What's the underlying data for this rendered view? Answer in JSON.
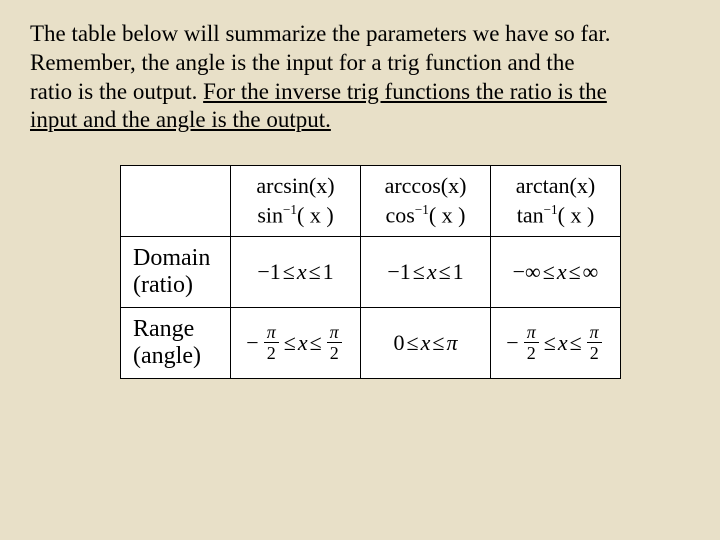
{
  "intro": {
    "line1": "The table below will summarize the parameters we have so far.",
    "line2": "Remember, the angle is the input for a trig function and the",
    "line3_plain": "ratio is the output. ",
    "line3_under": "For the inverse trig functions the ratio is the",
    "line4_under": "input and the angle is the output."
  },
  "table": {
    "headers": {
      "col1_top": "arcsin(x)",
      "col1_bot_fn": "sin",
      "col2_top": "arccos(x)",
      "col2_bot_fn": "cos",
      "col3_top": "arctan(x)",
      "col3_bot_fn": "tan",
      "inv_exp": "−1",
      "arg": "( x )"
    },
    "rows": {
      "domain_label1": "Domain",
      "domain_label2": "(ratio)",
      "range_label1": "Range",
      "range_label2": "(angle)"
    },
    "domain": {
      "sin_low": "−1",
      "sin_mid": "x",
      "sin_high": "1",
      "cos_low": "−1",
      "cos_mid": "x",
      "cos_high": "1",
      "tan_low": "−∞",
      "tan_mid": "x",
      "tan_high": "∞"
    },
    "range": {
      "pi": "π",
      "two": "2",
      "le": "≤",
      "x": "x",
      "zero": "0",
      "neg": "−"
    }
  },
  "style": {
    "background": "#e8e0c8",
    "cell_bg": "#ffffff",
    "border": "#000000",
    "text": "#000000",
    "intro_fontsize": 23,
    "cell_fontsize": 22
  }
}
